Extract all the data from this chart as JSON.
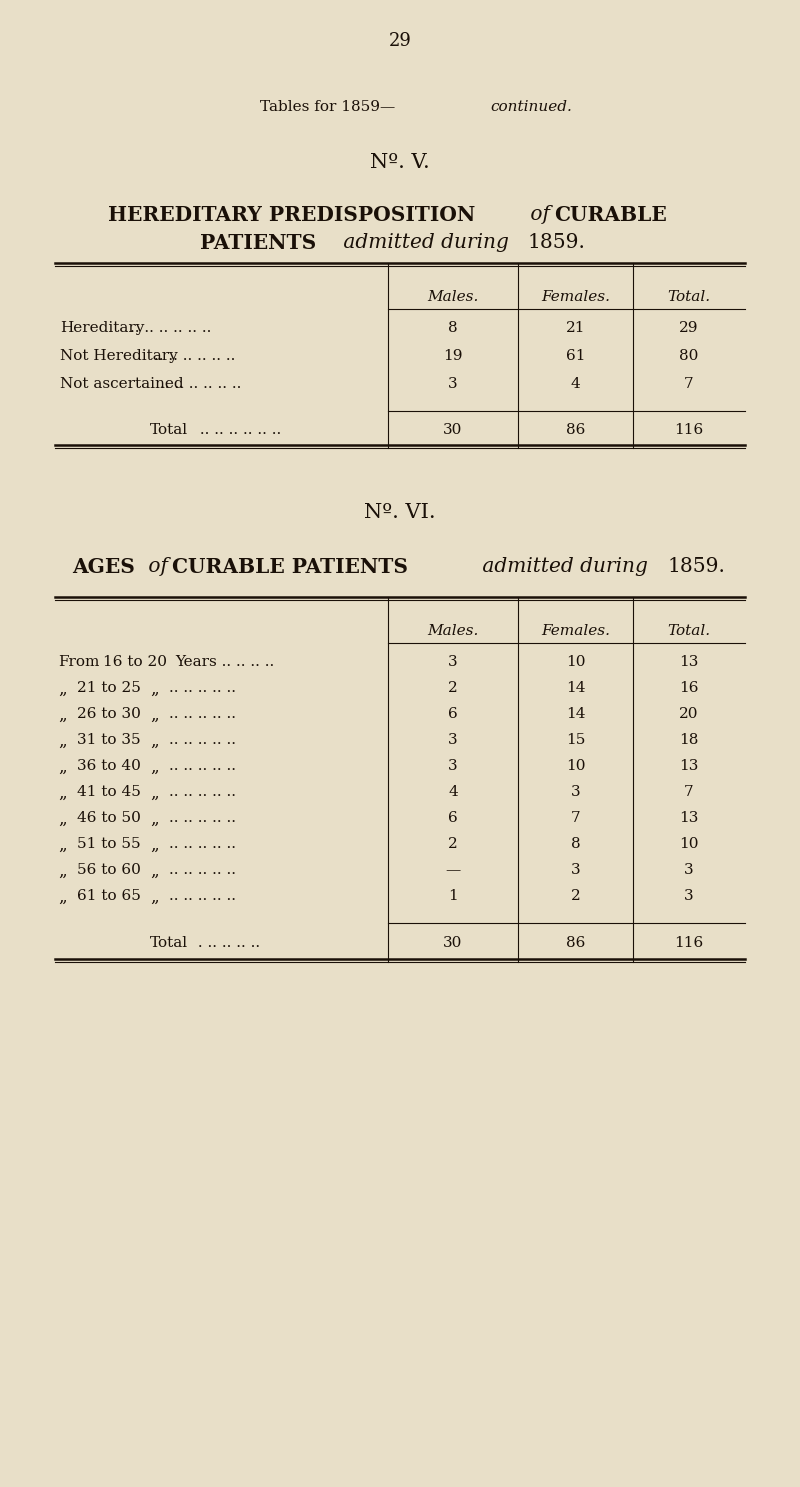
{
  "bg_color": "#e8dfc8",
  "text_color": "#1a1008",
  "page_number": "29",
  "no_v_label": "Nº. V.",
  "no_vi_label": "Nº. VI.",
  "table1_col_headers": [
    "Males.",
    "Females.",
    "Total."
  ],
  "table1_rows": [
    [
      "Hereditary",
      ".. .. .. .. .. ..",
      "8",
      "21",
      "29"
    ],
    [
      "Not Hereditary",
      ".. .. .. .. .. ..",
      "19",
      "61",
      "80"
    ],
    [
      "Not ascertained",
      ".. .. .. .. .. ..",
      "3",
      "4",
      "7"
    ]
  ],
  "table1_total_row": [
    "Total",
    " .. .. .. .. .. ..",
    "30",
    "86",
    "116"
  ],
  "table2_col_headers": [
    "Males.",
    "Females.",
    "Total."
  ],
  "table2_age_labels": [
    "16 to 20",
    "21 to 25",
    "26 to 30",
    "31 to 35",
    "36 to 40",
    "41 to 45",
    "46 to 50",
    "51 to 55",
    "56 to 60",
    "61 to 65"
  ],
  "males2": [
    "3",
    "2",
    "6",
    "3",
    "3",
    "4",
    "6",
    "2",
    "—",
    "1"
  ],
  "females2": [
    "10",
    "14",
    "14",
    "15",
    "10",
    "3",
    "7",
    "8",
    "3",
    "2"
  ],
  "totals2": [
    "13",
    "16",
    "20",
    "18",
    "13",
    "7",
    "13",
    "10",
    "3",
    "3"
  ],
  "table2_total_row": [
    "Total",
    " . .. .. .. ..",
    "30",
    "86",
    "116"
  ]
}
